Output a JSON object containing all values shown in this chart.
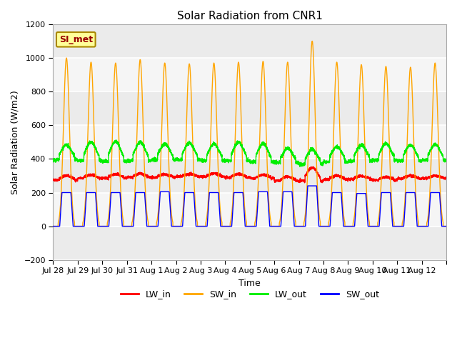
{
  "title": "Solar Radiation from CNR1",
  "xlabel": "Time",
  "ylabel": "Solar Radiation (W/m2)",
  "ylim": [
    -200,
    1200
  ],
  "yticks": [
    -200,
    0,
    200,
    400,
    600,
    800,
    1000,
    1200
  ],
  "line_colors": {
    "LW_in": "#ff0000",
    "SW_in": "#ffa500",
    "LW_out": "#00ee00",
    "SW_out": "#0000ff"
  },
  "annotation_text": "SI_met",
  "annotation_bg": "#ffff99",
  "annotation_border": "#aa8800",
  "n_days": 16,
  "day_labels": [
    "Jul 28",
    "Jul 29",
    "Jul 30",
    "Jul 31",
    "Aug 1",
    "Aug 2",
    "Aug 3",
    "Aug 4",
    "Aug 5",
    "Aug 6",
    "Aug 7",
    "Aug 8",
    "Aug 9",
    "Aug 10",
    "Aug 11",
    "Aug 12"
  ],
  "SW_in_peaks": [
    1000,
    975,
    970,
    990,
    970,
    965,
    970,
    975,
    980,
    975,
    1100,
    975,
    960,
    950,
    945,
    970
  ],
  "SW_out_peaks": [
    200,
    200,
    200,
    200,
    205,
    200,
    200,
    200,
    205,
    205,
    240,
    200,
    195,
    200,
    200,
    200
  ],
  "LW_in_base": [
    275,
    285,
    285,
    290,
    290,
    295,
    295,
    290,
    285,
    270,
    270,
    278,
    280,
    275,
    283,
    285
  ],
  "LW_in_amp": [
    25,
    20,
    25,
    22,
    18,
    15,
    18,
    20,
    20,
    25,
    80,
    22,
    18,
    18,
    18,
    15
  ],
  "LW_out_base": [
    395,
    390,
    385,
    390,
    395,
    395,
    390,
    390,
    382,
    378,
    368,
    382,
    388,
    393,
    388,
    393
  ],
  "LW_out_amp": [
    90,
    110,
    120,
    110,
    95,
    100,
    100,
    110,
    110,
    85,
    90,
    90,
    95,
    98,
    95,
    92
  ]
}
